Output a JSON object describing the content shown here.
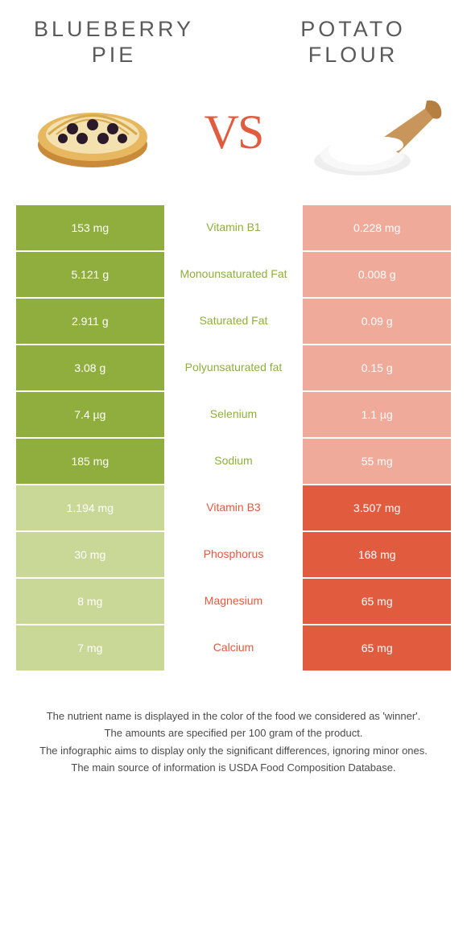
{
  "colors": {
    "left_win": "#8fae3e",
    "right_win": "#e15b3f",
    "left_lose": "#c9d797",
    "right_lose": "#f0aa99",
    "mid_bg": "#ffffff",
    "title_text": "#5a5a5a",
    "vs_text": "#e15b3f",
    "footer_text": "#4a4a4a"
  },
  "title_left": "BLUEBERRY\nPIE",
  "title_right": "POTATO\nFLOUR",
  "vs_label": "VS",
  "rows": [
    {
      "left": "153 mg",
      "name": "Vitamin B1",
      "right": "0.228 mg",
      "winner": "left"
    },
    {
      "left": "5.121 g",
      "name": "Monounsaturated Fat",
      "right": "0.008 g",
      "winner": "left"
    },
    {
      "left": "2.911 g",
      "name": "Saturated Fat",
      "right": "0.09 g",
      "winner": "left"
    },
    {
      "left": "3.08 g",
      "name": "Polyunsaturated fat",
      "right": "0.15 g",
      "winner": "left"
    },
    {
      "left": "7.4 µg",
      "name": "Selenium",
      "right": "1.1 µg",
      "winner": "left"
    },
    {
      "left": "185 mg",
      "name": "Sodium",
      "right": "55 mg",
      "winner": "left"
    },
    {
      "left": "1.194 mg",
      "name": "Vitamin B3",
      "right": "3.507 mg",
      "winner": "right"
    },
    {
      "left": "30 mg",
      "name": "Phosphorus",
      "right": "168 mg",
      "winner": "right"
    },
    {
      "left": "8 mg",
      "name": "Magnesium",
      "right": "65 mg",
      "winner": "right"
    },
    {
      "left": "7 mg",
      "name": "Calcium",
      "right": "65 mg",
      "winner": "right"
    }
  ],
  "footer": [
    "The nutrient name is displayed in the color of the food we considered as 'winner'.",
    "The amounts are specified per 100 gram of the product.",
    "The infographic aims to display only the significant differences, ignoring minor ones.",
    "The main source of information is USDA Food Composition Database."
  ]
}
